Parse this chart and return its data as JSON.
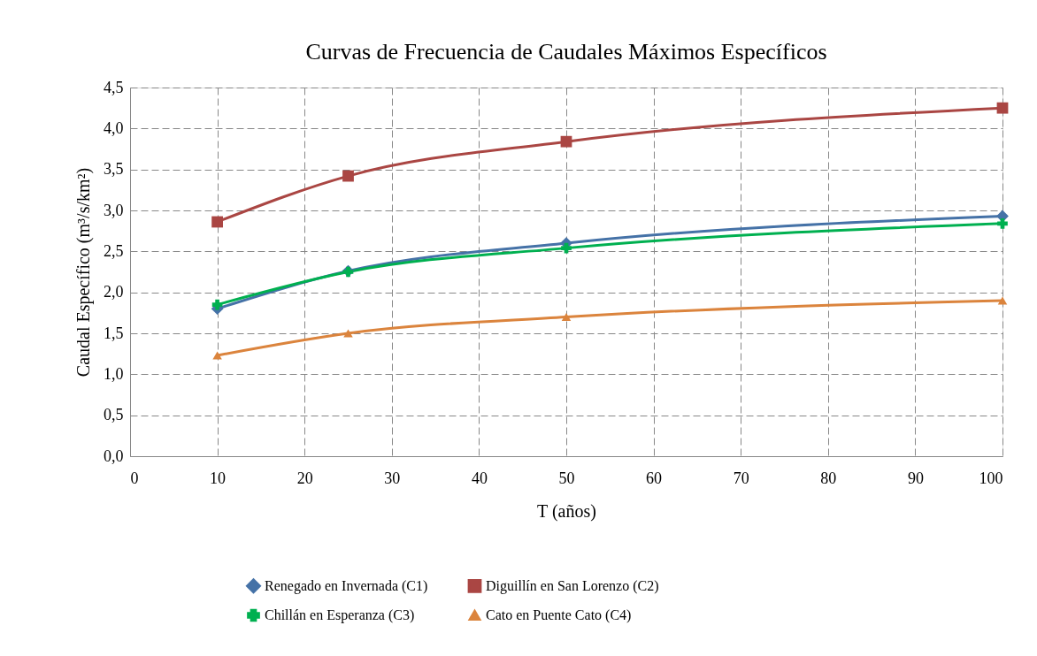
{
  "chart_data": {
    "type": "line",
    "title": "Curvas de Frecuencia de Caudales Máximos Específicos",
    "xlabel": "T (años)",
    "ylabel": "Caudal Específico (m³/s/km²)",
    "x": [
      10,
      25,
      50,
      100
    ],
    "series": [
      {
        "name": "Renegado en Invernada (C1)",
        "color": "#4572a7",
        "marker": "diamond",
        "values": [
          1.8,
          2.26,
          2.6,
          2.93
        ]
      },
      {
        "name": "Diguillín en San Lorenzo (C2)",
        "color": "#aa4643",
        "marker": "square",
        "values": [
          2.86,
          3.42,
          3.84,
          4.25
        ]
      },
      {
        "name": "Chillán en Esperanza (C3)",
        "color": "#00b050",
        "marker": "cross",
        "values": [
          1.85,
          2.25,
          2.54,
          2.84
        ]
      },
      {
        "name": "Cato en Puente Cato (C4)",
        "color": "#db843d",
        "marker": "triangle",
        "values": [
          1.23,
          1.5,
          1.7,
          1.9
        ]
      }
    ],
    "xlim": [
      0,
      100
    ],
    "xticks": [
      0,
      10,
      20,
      30,
      40,
      50,
      60,
      70,
      80,
      90,
      100
    ],
    "ylim": [
      0,
      4.5
    ],
    "yticks": [
      {
        "value": 0,
        "label": "0,0"
      },
      {
        "value": 0.5,
        "label": "0,5"
      },
      {
        "value": 1,
        "label": "1,0"
      },
      {
        "value": 1.5,
        "label": "1,5"
      },
      {
        "value": 2,
        "label": "2,0"
      },
      {
        "value": 2.5,
        "label": "2,5"
      },
      {
        "value": 3,
        "label": "3,0"
      },
      {
        "value": 3.5,
        "label": "3,5"
      },
      {
        "value": 4,
        "label": "4,0"
      },
      {
        "value": 4.5,
        "label": "4,5"
      }
    ],
    "grid": true,
    "line_style": "solid",
    "legend": "bottom"
  }
}
